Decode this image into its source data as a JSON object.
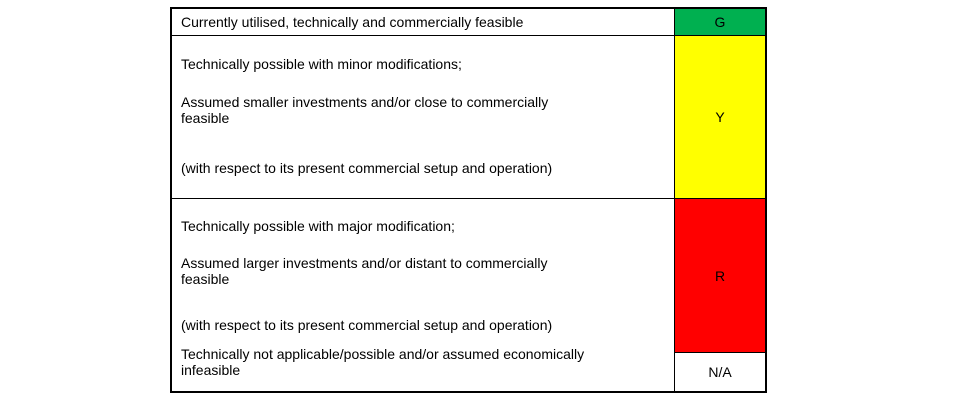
{
  "legend": {
    "row1": {
      "text": "Currently utilised, technically and commercially feasible",
      "code": "G",
      "color": "#00B050"
    },
    "row2": {
      "p1": "Technically possible with minor modifications;",
      "p2": "Assumed smaller investments and/or close to commercially\nfeasible",
      "p3": "(with respect to its present commercial setup and operation)",
      "code": "Y",
      "color": "#FFFF00"
    },
    "row3": {
      "p1": "Technically possible with major modification;",
      "p2": "Assumed larger investments and/or distant to commercially\nfeasible",
      "p3": "(with respect to its present commercial setup and operation)",
      "code": "R",
      "color": "#FF0000"
    },
    "row4": {
      "text": "Technically not applicable/possible and/or assumed economically\ninfeasible",
      "code": "N/A",
      "color": "#FFFFFF"
    }
  }
}
